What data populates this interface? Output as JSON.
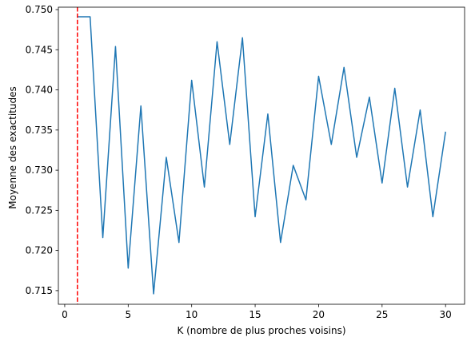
{
  "chart_data": {
    "type": "line",
    "title": "",
    "xlabel": "K (nombre de plus proches voisins)",
    "ylabel": "Moyenne des exactitudes",
    "xlim": [
      -0.5,
      31.5
    ],
    "ylim": [
      0.7133,
      0.7503
    ],
    "xticks": [
      0,
      5,
      10,
      15,
      20,
      25,
      30
    ],
    "yticks": [
      0.715,
      0.72,
      0.725,
      0.73,
      0.735,
      0.74,
      0.745,
      0.75
    ],
    "xtick_labels": [
      "0",
      "5",
      "10",
      "15",
      "20",
      "25",
      "30"
    ],
    "ytick_labels": [
      "0.715",
      "0.720",
      "0.725",
      "0.730",
      "0.735",
      "0.740",
      "0.745",
      "0.750"
    ],
    "grid": false,
    "legend": false,
    "series": [
      {
        "color": "#1f77b4",
        "x": [
          1,
          2,
          3,
          4,
          5,
          6,
          7,
          8,
          9,
          10,
          11,
          12,
          13,
          14,
          15,
          16,
          17,
          18,
          19,
          20,
          21,
          22,
          23,
          24,
          25,
          26,
          27,
          28,
          29,
          30
        ],
        "y": [
          0.7491,
          0.7491,
          0.7216,
          0.7454,
          0.7178,
          0.738,
          0.7146,
          0.7316,
          0.721,
          0.7412,
          0.7279,
          0.746,
          0.7332,
          0.7465,
          0.7242,
          0.737,
          0.721,
          0.7306,
          0.7263,
          0.7417,
          0.7332,
          0.7428,
          0.7316,
          0.7391,
          0.7284,
          0.7402,
          0.7279,
          0.7375,
          0.7242,
          0.7348
        ]
      }
    ],
    "vline": {
      "x": 1,
      "color": "#ff0000",
      "style": "dashed"
    }
  }
}
